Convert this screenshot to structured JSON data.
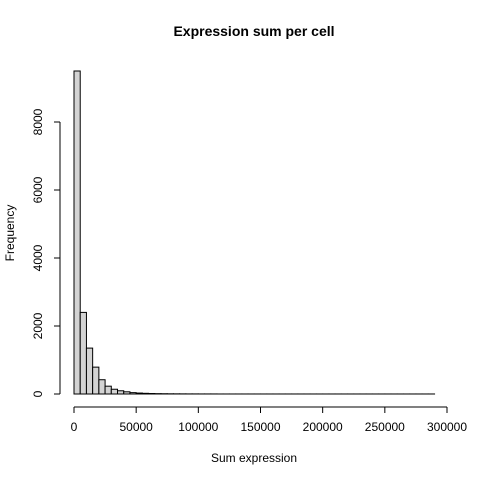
{
  "chart_data": {
    "type": "bar",
    "title": "Expression sum per cell",
    "xlabel": "Sum expression",
    "ylabel": "Frequency",
    "bin_width": 5000,
    "x_bin_edges_start": 0,
    "xlim": [
      0,
      300000
    ],
    "ylim": [
      0,
      9500
    ],
    "x_ticks": [
      0,
      50000,
      100000,
      150000,
      200000,
      250000,
      300000
    ],
    "y_ticks": [
      0,
      2000,
      4000,
      6000,
      8000
    ],
    "values": [
      9500,
      2400,
      1350,
      790,
      420,
      230,
      140,
      95,
      65,
      40,
      28,
      20,
      14,
      10,
      8,
      6,
      5,
      4,
      3,
      3,
      2,
      2,
      2,
      1,
      1,
      1,
      1,
      1,
      1,
      1,
      1,
      1,
      1,
      1,
      1,
      1,
      1,
      1,
      1,
      1,
      1,
      1,
      1,
      1,
      1,
      1,
      1,
      1,
      1,
      1,
      1,
      1,
      1,
      1,
      1,
      1,
      1,
      1
    ],
    "colors": {
      "bar_fill": "#d3d3d3",
      "bar_stroke": "#000000"
    }
  }
}
